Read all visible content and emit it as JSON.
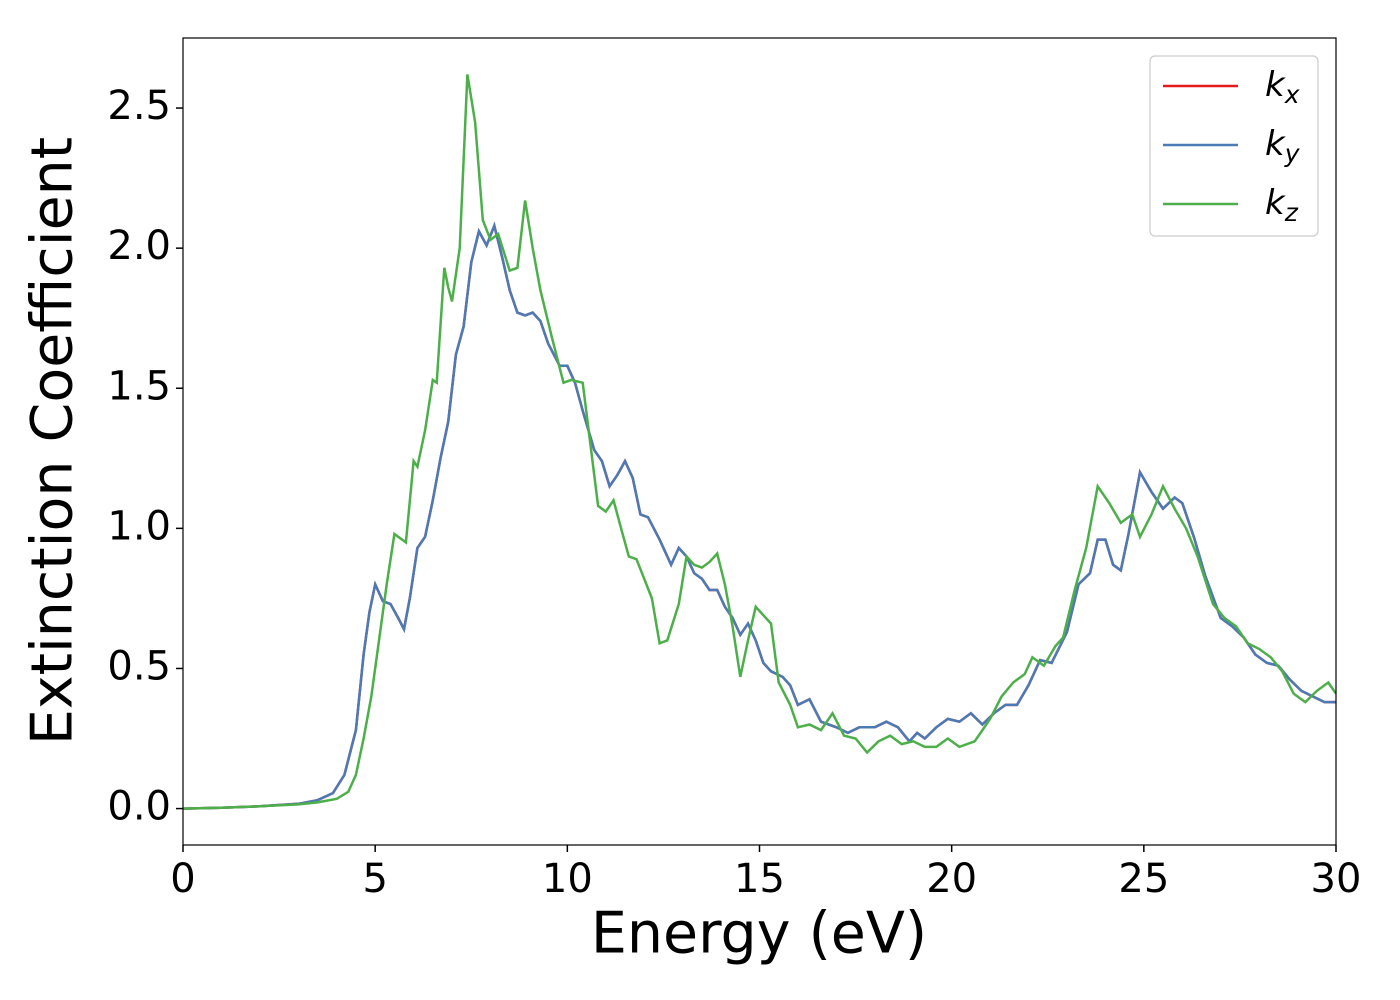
{
  "chart_data": {
    "type": "line",
    "xlabel": "Energy (eV)",
    "ylabel": "Extinction Coefficient",
    "xlim": [
      0,
      30
    ],
    "ylim": [
      -0.13,
      2.75
    ],
    "xticks": [
      0,
      5,
      10,
      15,
      20,
      25,
      30
    ],
    "yticks": [
      {
        "value": 0,
        "label": "0.0"
      },
      0.5,
      {
        "value": 1,
        "label": "1.0"
      },
      1.5,
      {
        "value": 2,
        "label": "2.0"
      },
      2.5
    ],
    "legend": "upper right",
    "series": [
      {
        "name": "k_x",
        "color": "#e41a1c",
        "x": [
          0,
          1,
          2,
          3,
          3.5,
          3.9,
          4.2,
          4.5,
          4.7,
          4.85,
          5.0,
          5.2,
          5.4,
          5.6,
          5.75,
          5.9,
          6.1,
          6.3,
          6.5,
          6.7,
          6.9,
          7.1,
          7.3,
          7.5,
          7.7,
          7.9,
          8.1,
          8.3,
          8.5,
          8.7,
          8.9,
          9.1,
          9.3,
          9.5,
          9.8,
          10.0,
          10.2,
          10.4,
          10.7,
          10.9,
          11.1,
          11.3,
          11.5,
          11.7,
          11.9,
          12.1,
          12.4,
          12.7,
          12.9,
          13.1,
          13.3,
          13.5,
          13.7,
          13.9,
          14.1,
          14.3,
          14.5,
          14.7,
          14.9,
          15.1,
          15.3,
          15.6,
          15.8,
          16.0,
          16.3,
          16.6,
          17.0,
          17.3,
          17.6,
          18.0,
          18.3,
          18.6,
          18.9,
          19.1,
          19.3,
          19.6,
          19.9,
          20.2,
          20.5,
          20.8,
          21.1,
          21.4,
          21.7,
          22.0,
          22.3,
          22.6,
          23.0,
          23.3,
          23.6,
          23.8,
          24.0,
          24.2,
          24.4,
          24.6,
          24.9,
          25.2,
          25.5,
          25.8,
          26.0,
          26.3,
          26.6,
          27.0,
          27.3,
          27.6,
          27.9,
          28.2,
          28.5,
          28.8,
          29.1,
          29.4,
          29.7,
          30.0
        ],
        "values": [
          0,
          0.003,
          0.008,
          0.017,
          0.03,
          0.055,
          0.12,
          0.28,
          0.55,
          0.7,
          0.8,
          0.74,
          0.73,
          0.68,
          0.64,
          0.75,
          0.93,
          0.97,
          1.1,
          1.25,
          1.38,
          1.62,
          1.72,
          1.95,
          2.06,
          2.01,
          2.08,
          1.97,
          1.85,
          1.77,
          1.76,
          1.77,
          1.74,
          1.66,
          1.58,
          1.58,
          1.52,
          1.42,
          1.28,
          1.24,
          1.15,
          1.19,
          1.24,
          1.18,
          1.05,
          1.04,
          0.96,
          0.87,
          0.93,
          0.9,
          0.84,
          0.82,
          0.78,
          0.78,
          0.72,
          0.68,
          0.62,
          0.66,
          0.6,
          0.52,
          0.49,
          0.47,
          0.44,
          0.37,
          0.39,
          0.31,
          0.29,
          0.27,
          0.29,
          0.29,
          0.31,
          0.29,
          0.24,
          0.27,
          0.25,
          0.29,
          0.32,
          0.31,
          0.34,
          0.3,
          0.34,
          0.37,
          0.37,
          0.44,
          0.53,
          0.52,
          0.63,
          0.8,
          0.84,
          0.96,
          0.96,
          0.87,
          0.85,
          0.98,
          1.2,
          1.13,
          1.07,
          1.11,
          1.09,
          0.97,
          0.83,
          0.68,
          0.65,
          0.61,
          0.55,
          0.52,
          0.51,
          0.46,
          0.42,
          0.4,
          0.38,
          0.38
        ]
      },
      {
        "name": "k_y",
        "color": "#4a7bb7",
        "x": [
          0,
          1,
          2,
          3,
          3.5,
          3.9,
          4.2,
          4.5,
          4.7,
          4.85,
          5.0,
          5.2,
          5.4,
          5.6,
          5.75,
          5.9,
          6.1,
          6.3,
          6.5,
          6.7,
          6.9,
          7.1,
          7.3,
          7.5,
          7.7,
          7.9,
          8.1,
          8.3,
          8.5,
          8.7,
          8.9,
          9.1,
          9.3,
          9.5,
          9.8,
          10.0,
          10.2,
          10.4,
          10.7,
          10.9,
          11.1,
          11.3,
          11.5,
          11.7,
          11.9,
          12.1,
          12.4,
          12.7,
          12.9,
          13.1,
          13.3,
          13.5,
          13.7,
          13.9,
          14.1,
          14.3,
          14.5,
          14.7,
          14.9,
          15.1,
          15.3,
          15.6,
          15.8,
          16.0,
          16.3,
          16.6,
          17.0,
          17.3,
          17.6,
          18.0,
          18.3,
          18.6,
          18.9,
          19.1,
          19.3,
          19.6,
          19.9,
          20.2,
          20.5,
          20.8,
          21.1,
          21.4,
          21.7,
          22.0,
          22.3,
          22.6,
          23.0,
          23.3,
          23.6,
          23.8,
          24.0,
          24.2,
          24.4,
          24.6,
          24.9,
          25.2,
          25.5,
          25.8,
          26.0,
          26.3,
          26.6,
          27.0,
          27.3,
          27.6,
          27.9,
          28.2,
          28.5,
          28.8,
          29.1,
          29.4,
          29.7,
          30.0
        ],
        "values": [
          0,
          0.003,
          0.008,
          0.017,
          0.03,
          0.055,
          0.12,
          0.28,
          0.55,
          0.7,
          0.8,
          0.74,
          0.73,
          0.68,
          0.64,
          0.75,
          0.93,
          0.97,
          1.1,
          1.25,
          1.38,
          1.62,
          1.72,
          1.95,
          2.06,
          2.01,
          2.08,
          1.97,
          1.85,
          1.77,
          1.76,
          1.77,
          1.74,
          1.66,
          1.58,
          1.58,
          1.52,
          1.42,
          1.28,
          1.24,
          1.15,
          1.19,
          1.24,
          1.18,
          1.05,
          1.04,
          0.96,
          0.87,
          0.93,
          0.9,
          0.84,
          0.82,
          0.78,
          0.78,
          0.72,
          0.68,
          0.62,
          0.66,
          0.6,
          0.52,
          0.49,
          0.47,
          0.44,
          0.37,
          0.39,
          0.31,
          0.29,
          0.27,
          0.29,
          0.29,
          0.31,
          0.29,
          0.24,
          0.27,
          0.25,
          0.29,
          0.32,
          0.31,
          0.34,
          0.3,
          0.34,
          0.37,
          0.37,
          0.44,
          0.53,
          0.52,
          0.63,
          0.8,
          0.84,
          0.96,
          0.96,
          0.87,
          0.85,
          0.98,
          1.2,
          1.13,
          1.07,
          1.11,
          1.09,
          0.97,
          0.83,
          0.68,
          0.65,
          0.61,
          0.55,
          0.52,
          0.51,
          0.46,
          0.42,
          0.4,
          0.38,
          0.38
        ]
      },
      {
        "name": "k_z",
        "color": "#4daf4a",
        "x": [
          0,
          1,
          2,
          3,
          3.5,
          4.0,
          4.3,
          4.5,
          4.7,
          4.9,
          5.1,
          5.3,
          5.5,
          5.7,
          5.8,
          6.0,
          6.1,
          6.3,
          6.5,
          6.6,
          6.8,
          6.9,
          7.0,
          7.2,
          7.4,
          7.6,
          7.8,
          8.0,
          8.2,
          8.5,
          8.7,
          8.9,
          9.1,
          9.3,
          9.6,
          9.9,
          10.1,
          10.4,
          10.6,
          10.8,
          11.0,
          11.2,
          11.4,
          11.6,
          11.8,
          12.0,
          12.2,
          12.4,
          12.6,
          12.9,
          13.1,
          13.3,
          13.5,
          13.7,
          13.9,
          14.1,
          14.3,
          14.5,
          14.7,
          14.9,
          15.1,
          15.3,
          15.5,
          15.8,
          16.0,
          16.3,
          16.6,
          16.9,
          17.2,
          17.5,
          17.8,
          18.1,
          18.4,
          18.7,
          19.0,
          19.3,
          19.6,
          19.9,
          20.2,
          20.6,
          21.0,
          21.3,
          21.6,
          21.9,
          22.1,
          22.4,
          22.7,
          22.9,
          23.2,
          23.5,
          23.8,
          24.1,
          24.4,
          24.7,
          24.9,
          25.2,
          25.5,
          25.8,
          26.1,
          26.4,
          26.8,
          27.1,
          27.4,
          27.7,
          28.0,
          28.3,
          28.6,
          28.9,
          29.2,
          29.5,
          29.8,
          30.0
        ],
        "values": [
          0,
          0.003,
          0.008,
          0.015,
          0.022,
          0.035,
          0.06,
          0.12,
          0.25,
          0.4,
          0.6,
          0.8,
          0.98,
          0.96,
          0.95,
          1.24,
          1.22,
          1.35,
          1.53,
          1.52,
          1.93,
          1.86,
          1.81,
          2.0,
          2.62,
          2.45,
          2.1,
          2.03,
          2.05,
          1.92,
          1.93,
          2.17,
          2.0,
          1.85,
          1.68,
          1.52,
          1.53,
          1.52,
          1.3,
          1.08,
          1.06,
          1.1,
          1.0,
          0.9,
          0.89,
          0.82,
          0.75,
          0.59,
          0.6,
          0.73,
          0.9,
          0.87,
          0.86,
          0.88,
          0.91,
          0.8,
          0.65,
          0.47,
          0.6,
          0.72,
          0.69,
          0.66,
          0.45,
          0.37,
          0.29,
          0.3,
          0.28,
          0.34,
          0.26,
          0.25,
          0.2,
          0.24,
          0.26,
          0.23,
          0.24,
          0.22,
          0.22,
          0.25,
          0.22,
          0.24,
          0.32,
          0.4,
          0.45,
          0.48,
          0.54,
          0.51,
          0.58,
          0.61,
          0.78,
          0.93,
          1.15,
          1.09,
          1.02,
          1.05,
          0.97,
          1.05,
          1.15,
          1.07,
          1.0,
          0.9,
          0.73,
          0.68,
          0.65,
          0.59,
          0.57,
          0.54,
          0.49,
          0.41,
          0.38,
          0.42,
          0.45,
          0.41
        ]
      }
    ]
  }
}
